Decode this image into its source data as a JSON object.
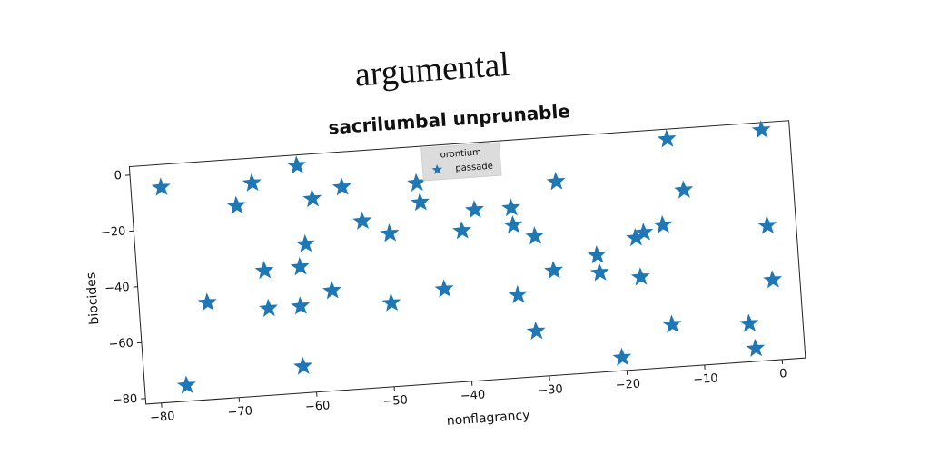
{
  "chart_data": {
    "type": "scatter",
    "suptitle": "argumental",
    "title": "sacrilumbal unprunable",
    "x_label": "nonflagrancy",
    "y_label": "biocides",
    "legend_title": "orontium",
    "legend_position": "upper center",
    "marker": "star",
    "xlim": [
      -82,
      3
    ],
    "ylim": [
      -82,
      3
    ],
    "xticks": [
      {
        "value": -80,
        "label": "−80"
      },
      {
        "value": -70,
        "label": "−70"
      },
      {
        "value": -60,
        "label": "−60"
      },
      {
        "value": -50,
        "label": "−50"
      },
      {
        "value": -40,
        "label": "−40"
      },
      {
        "value": -30,
        "label": "−30"
      },
      {
        "value": -20,
        "label": "−20"
      },
      {
        "value": -10,
        "label": "−10"
      },
      0
    ],
    "yticks": [
      {
        "value": -80,
        "label": "−80"
      },
      {
        "value": -60,
        "label": "−60"
      },
      {
        "value": -40,
        "label": "−40"
      },
      {
        "value": -20,
        "label": "−20"
      },
      0
    ],
    "series": [
      {
        "name": "passade",
        "color": "#1f77b4",
        "x": [
          -78.1,
          -76.6,
          -73.2,
          -68.6,
          -66.4,
          -65.6,
          -65.4,
          -60.5,
          -61,
          -61.3,
          -60.1,
          -61.5,
          -58.8,
          -57.1,
          -54.9,
          -52.6,
          -49.2,
          -49.6,
          -45.3,
          -45,
          -42.7,
          -39.9,
          -38.1,
          -33.4,
          -33.3,
          -33.3,
          -30.6,
          -31.3,
          -28.5,
          -27.4,
          -22.8,
          -22.6,
          -20.5,
          -17.7,
          -16.6,
          -17.4,
          -14.1,
          -12.8,
          -13.8,
          -11.1,
          -3.9,
          -3.3,
          -0.6,
          -0.7,
          -0.5
        ],
        "values": [
          -5.2,
          -76.4,
          -47.4,
          -13.6,
          -5.9,
          -37.4,
          -51,
          -0.8,
          -37,
          -51,
          -29,
          -72.5,
          -13,
          -46.2,
          -9.6,
          -22.2,
          -27.3,
          -52.1,
          -10,
          -17,
          -48.5,
          -28.1,
          -21,
          -21.2,
          -27.4,
          -52.4,
          -31.9,
          -65.8,
          -44.6,
          -13,
          -40.2,
          -46.5,
          -77.3,
          -35,
          -33.3,
          -49.1,
          -31.1,
          -0.6,
          -66.8,
          -19.2,
          -68.4,
          -77.4,
          0.3,
          -33.9,
          -53.4
        ]
      }
    ]
  }
}
